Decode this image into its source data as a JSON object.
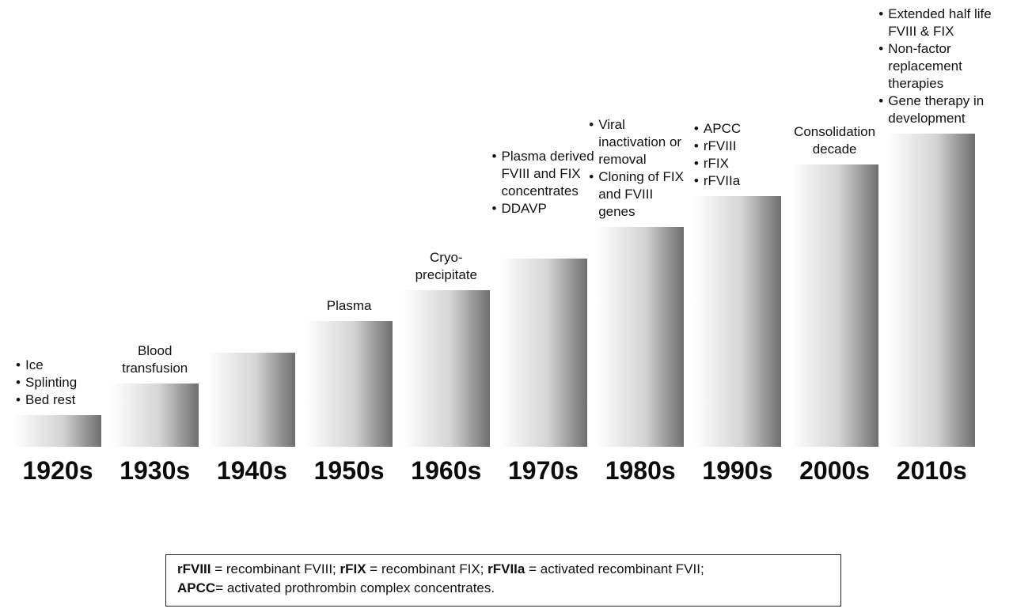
{
  "decades": [
    {
      "decade": "1920s",
      "level": 1,
      "items": [
        "Ice",
        "Splinting",
        "Bed rest"
      ]
    },
    {
      "decade": "1930s",
      "level": 2,
      "label_lines": [
        "Blood",
        "transfusion"
      ]
    },
    {
      "decade": "1940s",
      "level": 3
    },
    {
      "decade": "1950s",
      "level": 4,
      "label_lines": [
        "Plasma"
      ]
    },
    {
      "decade": "1960s",
      "level": 5,
      "label_lines": [
        "Cryo-",
        "precipitate"
      ]
    },
    {
      "decade": "1970s",
      "level": 6,
      "items": [
        "Plasma derived FVIII and FIX concentrates",
        "DDAVP"
      ]
    },
    {
      "decade": "1980s",
      "level": 7,
      "items": [
        "Viral inactivation or removal",
        "Cloning of FIX and FVIII genes"
      ]
    },
    {
      "decade": "1990s",
      "level": 8,
      "items": [
        "APCC",
        "rFVIII",
        "rFIX",
        "rFVIIa"
      ]
    },
    {
      "decade": "2000s",
      "level": 9,
      "label_lines": [
        "Consolidation",
        "decade"
      ]
    },
    {
      "decade": "2010s",
      "level": 10,
      "items": [
        "Extended half life FVIII & FIX",
        "Non-factor replacement therapies",
        "Gene therapy in development"
      ]
    }
  ],
  "legend": {
    "line1": [
      {
        "term": "rFVIII",
        "def": " = recombinant FVIII; "
      },
      {
        "term": "rFIX",
        "def": " = recombinant FIX; "
      },
      {
        "term": "rFVIIa",
        "def": " = activated recombinant FVII;"
      }
    ],
    "line2": [
      {
        "term": "APCC",
        "def": "= activated prothrombin complex concentrates."
      }
    ]
  }
}
